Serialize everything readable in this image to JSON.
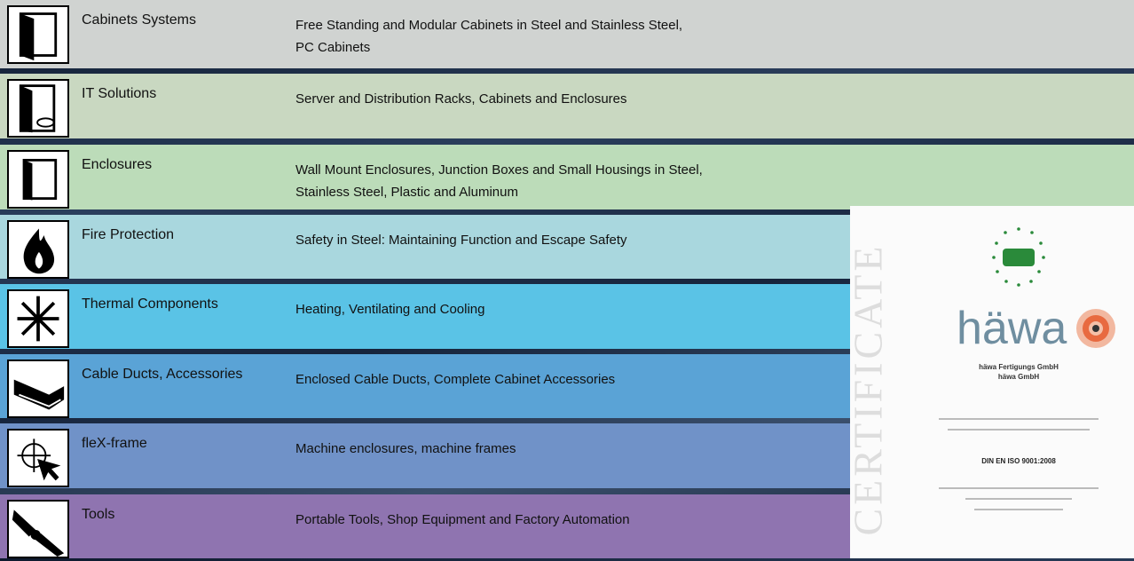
{
  "rows": [
    {
      "name": "Cabinets Systems",
      "description": [
        "Free Standing and Modular Cabinets in Steel and Stainless Steel,",
        "PC Cabinets"
      ]
    },
    {
      "name": "IT Solutions",
      "description": [
        "Server and Distribution Racks, Cabinets and Enclosures"
      ]
    },
    {
      "name": "Enclosures",
      "description": [
        "Wall Mount Enclosures, Junction Boxes and Small Housings in Steel,",
        "Stainless Steel, Plastic and Aluminum"
      ]
    },
    {
      "name": "Fire Protection",
      "description": [
        "Safety in Steel: Maintaining Function and Escape Safety"
      ]
    },
    {
      "name": "Thermal Components",
      "description": [
        "Heating, Ventilating and Cooling"
      ]
    },
    {
      "name": "Cable Ducts, Accessories",
      "description": [
        "Enclosed Cable Ducts, Complete Cabinet Accessories"
      ]
    },
    {
      "name": "fleX-frame",
      "description": [
        "Machine enclosures, machine frames"
      ]
    },
    {
      "name": "Tools",
      "description": [
        "Portable Tools, Shop Equipment and Factory Automation"
      ]
    }
  ],
  "certificate": {
    "heading": "CERTIFICATE",
    "brand": "häwa",
    "company": [
      "häwa Fertigungs GmbH",
      "häwa GmbH"
    ],
    "standard": "DIN EN ISO 9001:2008"
  }
}
